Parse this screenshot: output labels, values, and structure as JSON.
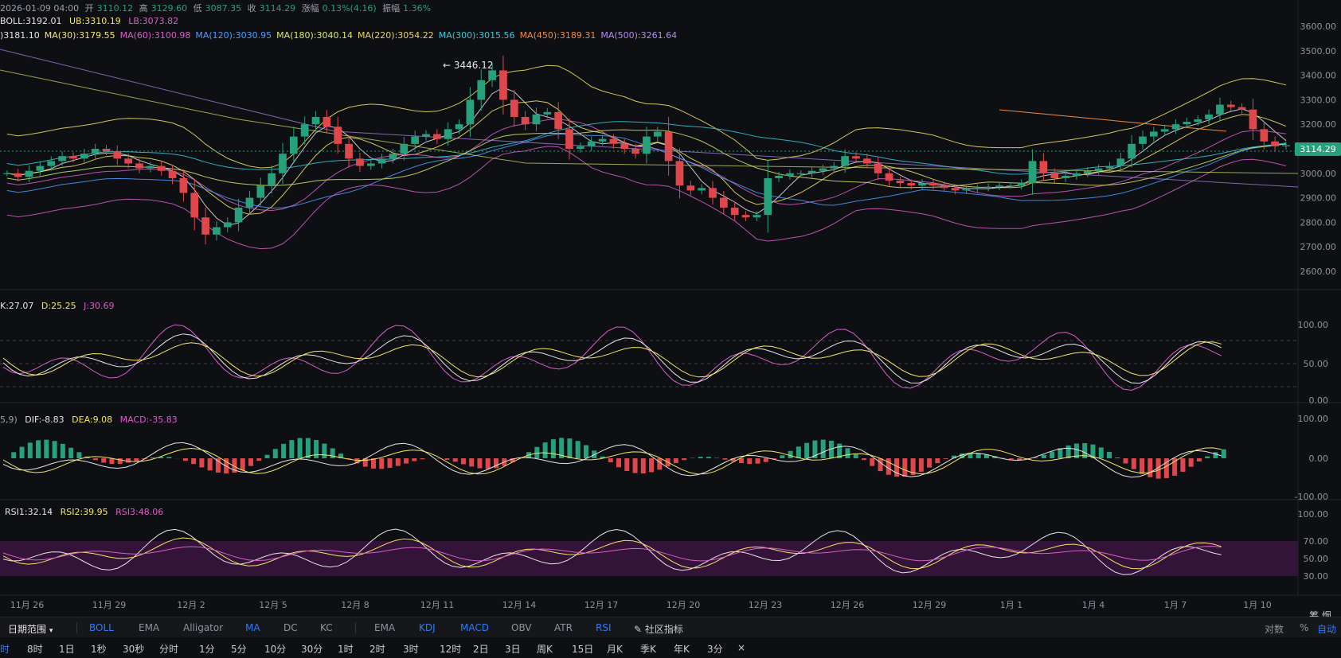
{
  "header": {
    "datetime": "2026-01-09 04:00",
    "open_label": "开",
    "open": "3110.12",
    "high_label": "高",
    "high": "3129.60",
    "low_label": "低",
    "low": "3087.35",
    "close_label": "收",
    "close": "3114.29",
    "change_label": "涨幅",
    "change": "0.13%(4.16)",
    "amplitude_label": "振幅",
    "amplitude": "1.36%"
  },
  "boll": {
    "label": "BOLL:3192.01",
    "ub": "UB:3310.19",
    "lb": "LB:3073.82"
  },
  "ma_legend": [
    {
      "text": ")3181.10",
      "color": "#e6e6e6"
    },
    {
      "text": "MA(30):3179.55",
      "color": "#f5e663"
    },
    {
      "text": "MA(60):3100.98",
      "color": "#d65fc8"
    },
    {
      "text": "MA(120):3030.95",
      "color": "#4a9eff"
    },
    {
      "text": "MA(180):3040.14",
      "color": "#d7e86a"
    },
    {
      "text": "MA(220):3054.22",
      "color": "#f0d060"
    },
    {
      "text": "MA(300):3015.56",
      "color": "#37c8d8"
    },
    {
      "text": "MA(450):3189.31",
      "color": "#f08a3c"
    },
    {
      "text": "MA(500):3261.64",
      "color": "#b48cf0"
    }
  ],
  "price_axis": [
    "3600.00",
    "3500.00",
    "3400.00",
    "3300.00",
    "3200.00",
    "3100.00",
    "3000.00",
    "2900.00",
    "2800.00",
    "2700.00",
    "2600.00"
  ],
  "current_price": "3114.29",
  "peak_annotation": "← 3446.12",
  "kdj": {
    "k": "K:27.07",
    "d": "D:25.25",
    "j": "J:30.69",
    "axis": [
      "100.00",
      "50.00",
      "0.00"
    ]
  },
  "macd": {
    "params": "5,9)",
    "dif": "DIF:-8.83",
    "dea": "DEA:9.08",
    "macd": "MACD:-35.83",
    "axis": [
      "100.00",
      "0.00",
      "-100.00"
    ]
  },
  "rsi": {
    "r1": "RSI1:32.14",
    "r2": "RSI2:39.95",
    "r3": "RSI3:48.06",
    "axis": [
      "100.00",
      "70.00",
      "50.00",
      "30.00"
    ]
  },
  "date_axis": [
    "11月 26",
    "11月 29",
    "12月 2",
    "12月 5",
    "12月 8",
    "12月 11",
    "12月 14",
    "12月 17",
    "12月 20",
    "12月 23",
    "12月 26",
    "12月 29",
    "1月 1",
    "1月 4",
    "1月 7",
    "1月 10"
  ],
  "date_axis_right": "筹  烟",
  "indicator_bar": {
    "range_label": "日期范围",
    "main_indicators": [
      "BOLL",
      "EMA",
      "Alligator",
      "MA",
      "DC",
      "KC"
    ],
    "sub_indicators": [
      "EMA",
      "KDJ",
      "MACD",
      "OBV",
      "ATR",
      "RSI"
    ],
    "community": "社区指标",
    "right": [
      "对数",
      "%",
      "自动"
    ]
  },
  "intervals": [
    "时",
    "8时",
    "1日",
    "1秒",
    "30秒",
    "分时",
    "1分",
    "5分",
    "10分",
    "30分",
    "1时",
    "2时",
    "3时",
    "12时",
    "2日",
    "3日",
    "周K",
    "15日",
    "月K",
    "季K",
    "年K",
    "3分",
    "×"
  ],
  "colors": {
    "up": "#26a17b",
    "down": "#e0474c",
    "accent": "#2f7bf6",
    "rsi_band": "#4a1a4e"
  },
  "chart_data": {
    "type": "candlestick",
    "ylim": [
      2560,
      3640
    ],
    "close_series": [
      3000,
      2985,
      3010,
      3030,
      3050,
      3070,
      3060,
      3080,
      3100,
      3090,
      3060,
      3040,
      3020,
      3030,
      3010,
      2980,
      2920,
      2820,
      2750,
      2780,
      2800,
      2860,
      2900,
      2950,
      3000,
      3080,
      3150,
      3200,
      3230,
      3190,
      3120,
      3060,
      3030,
      3040,
      3060,
      3080,
      3120,
      3150,
      3160,
      3140,
      3180,
      3200,
      3300,
      3380,
      3420,
      3300,
      3230,
      3200,
      3240,
      3250,
      3180,
      3100,
      3110,
      3130,
      3140,
      3120,
      3100,
      3080,
      3150,
      3170,
      3050,
      2950,
      2930,
      2940,
      2900,
      2860,
      2830,
      2820,
      2830,
      2980,
      2990,
      3000,
      3000,
      3010,
      3020,
      3030,
      3070,
      3060,
      3040,
      3000,
      2970,
      2960,
      2950,
      2960,
      2950,
      2940,
      2930,
      2935,
      2940,
      2945,
      2950,
      2950,
      2960,
      3050,
      3000,
      2980,
      2990,
      3000,
      3010,
      3020,
      3030,
      3060,
      3120,
      3150,
      3170,
      3180,
      3200,
      3210,
      3220,
      3240,
      3280,
      3270,
      3260,
      3180,
      3130,
      3110,
      3114.29
    ]
  }
}
